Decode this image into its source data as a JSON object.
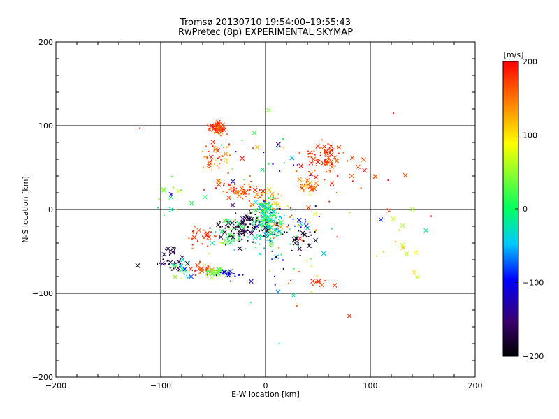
{
  "chart_data": {
    "type": "scatter",
    "title": "Tromsø 20130710 19:54:00–19:55:43",
    "subtitle": "RwPretec (8p) EXPERIMENTAL SKYMAP",
    "xlabel": "E-W location [km]",
    "ylabel": "N-S location [km]",
    "xlim": [
      -200,
      200
    ],
    "ylim": [
      -200,
      200
    ],
    "x_ticks": [
      -200,
      -100,
      0,
      100,
      200
    ],
    "y_ticks": [
      -200,
      -100,
      0,
      100,
      200
    ],
    "x_tick_labels": [
      "−200",
      "−100",
      "0",
      "100",
      "200"
    ],
    "y_tick_labels": [
      "−200",
      "−100",
      "0",
      "100",
      "200"
    ],
    "grid": true,
    "colorbar": {
      "unit_label": "[m/s]",
      "range": [
        -200,
        200
      ],
      "ticks": [
        200,
        100,
        0,
        -100,
        -200
      ],
      "tick_labels": [
        "200",
        "100",
        "0",
        "−100",
        "−200"
      ],
      "colormap": [
        "#000000",
        "#3a0070",
        "#0000ff",
        "#00c8ff",
        "#00ff60",
        "#ffff00",
        "#ff8000",
        "#ff0000"
      ]
    },
    "clusters": [
      {
        "cx": -45,
        "cy": 97,
        "sx": 5,
        "sy": 4,
        "n": 55,
        "vmin": 150,
        "vmax": 200,
        "big": 0.4
      },
      {
        "cx": -47,
        "cy": 60,
        "sx": 6,
        "sy": 12,
        "n": 45,
        "vmin": 110,
        "vmax": 200,
        "big": 0.25
      },
      {
        "cx": 55,
        "cy": 60,
        "sx": 10,
        "sy": 9,
        "n": 80,
        "vmin": 150,
        "vmax": 200,
        "big": 0.25
      },
      {
        "cx": 40,
        "cy": 28,
        "sx": 5,
        "sy": 4,
        "n": 25,
        "vmin": 110,
        "vmax": 180,
        "big": 0.3
      },
      {
        "cx": -25,
        "cy": 22,
        "sx": 10,
        "sy": 4,
        "n": 45,
        "vmin": 140,
        "vmax": 200,
        "big": 0.3
      },
      {
        "cx": 0,
        "cy": 10,
        "sx": 9,
        "sy": 8,
        "n": 45,
        "vmin": 90,
        "vmax": 200,
        "big": 0.2
      },
      {
        "cx": 2,
        "cy": -15,
        "sx": 6,
        "sy": 14,
        "n": 170,
        "vmin": -60,
        "vmax": 40,
        "big": 0.3
      },
      {
        "cx": -22,
        "cy": -22,
        "sx": 12,
        "sy": 10,
        "n": 85,
        "vmin": -200,
        "vmax": -150,
        "big": 0.35
      },
      {
        "cx": -35,
        "cy": -30,
        "sx": 9,
        "sy": 9,
        "n": 40,
        "vmin": -20,
        "vmax": 80,
        "big": 0.2
      },
      {
        "cx": 30,
        "cy": -35,
        "sx": 8,
        "sy": 7,
        "n": 25,
        "vmin": -200,
        "vmax": -160,
        "big": 0.3
      },
      {
        "cx": 25,
        "cy": -15,
        "sx": 20,
        "sy": 15,
        "n": 60,
        "vmin": -150,
        "vmax": 200,
        "big": 0.15
      },
      {
        "cx": -60,
        "cy": -33,
        "sx": 8,
        "sy": 5,
        "n": 30,
        "vmin": 140,
        "vmax": 200,
        "big": 0.2
      },
      {
        "cx": -90,
        "cy": -60,
        "sx": 6,
        "sy": 6,
        "n": 30,
        "vmin": -200,
        "vmax": -150,
        "big": 0.3
      },
      {
        "cx": -80,
        "cy": -70,
        "sx": 5,
        "sy": 6,
        "n": 18,
        "vmin": -100,
        "vmax": 80,
        "big": 0.3
      },
      {
        "cx": -62,
        "cy": -72,
        "sx": 5,
        "sy": 4,
        "n": 20,
        "vmin": 140,
        "vmax": 200,
        "big": 0.3
      },
      {
        "cx": -48,
        "cy": -75,
        "sx": 6,
        "sy": 3,
        "n": 30,
        "vmin": 10,
        "vmax": 70,
        "big": 0.3
      },
      {
        "cx": -38,
        "cy": -77,
        "sx": 5,
        "sy": 3,
        "n": 18,
        "vmin": -130,
        "vmax": -90,
        "big": 0.3
      },
      {
        "cx": 52,
        "cy": -88,
        "sx": 6,
        "sy": 3,
        "n": 12,
        "vmin": 150,
        "vmax": 200,
        "big": 0.5
      },
      {
        "cx": 95,
        "cy": 35,
        "sx": 18,
        "sy": 15,
        "n": 14,
        "vmin": 150,
        "vmax": 200,
        "big": 0.7
      },
      {
        "cx": 130,
        "cy": -35,
        "sx": 15,
        "sy": 20,
        "n": 12,
        "vmin": 50,
        "vmax": 130,
        "big": 0.6
      },
      {
        "cx": -85,
        "cy": 10,
        "sx": 12,
        "sy": 12,
        "n": 12,
        "vmin": -20,
        "vmax": 90,
        "big": 0.6
      },
      {
        "cx": 0,
        "cy": 60,
        "sx": 20,
        "sy": 30,
        "n": 30,
        "vmin": -200,
        "vmax": 200,
        "big": 0.25
      },
      {
        "cx": 20,
        "cy": -75,
        "sx": 25,
        "sy": 20,
        "n": 25,
        "vmin": -200,
        "vmax": 200,
        "big": 0.15
      }
    ],
    "outliers": [
      {
        "x": -120,
        "y": 97,
        "v": 190,
        "m": "dot"
      },
      {
        "x": 122,
        "y": 115,
        "v": 190,
        "m": "dot"
      },
      {
        "x": 80,
        "y": -127,
        "v": 185,
        "m": "x"
      },
      {
        "x": 13,
        "y": -160,
        "v": -30,
        "m": "dot"
      },
      {
        "x": 153,
        "y": -25,
        "v": -20,
        "m": "x"
      },
      {
        "x": 142,
        "y": -75,
        "v": 100,
        "m": "x"
      },
      {
        "x": 110,
        "y": -12,
        "v": -90,
        "m": "x"
      },
      {
        "x": -122,
        "y": -67,
        "v": -200,
        "m": "x"
      },
      {
        "x": -90,
        "y": 0,
        "v": -20,
        "m": "x"
      },
      {
        "x": -97,
        "y": 23,
        "v": 30,
        "m": "x"
      },
      {
        "x": -90,
        "y": 18,
        "v": -120,
        "m": "x"
      },
      {
        "x": 158,
        "y": -8,
        "v": 190,
        "m": "dot"
      },
      {
        "x": 12,
        "y": -98,
        "v": -60,
        "m": "x"
      },
      {
        "x": 30,
        "y": -115,
        "v": 150,
        "m": "dot"
      }
    ]
  }
}
